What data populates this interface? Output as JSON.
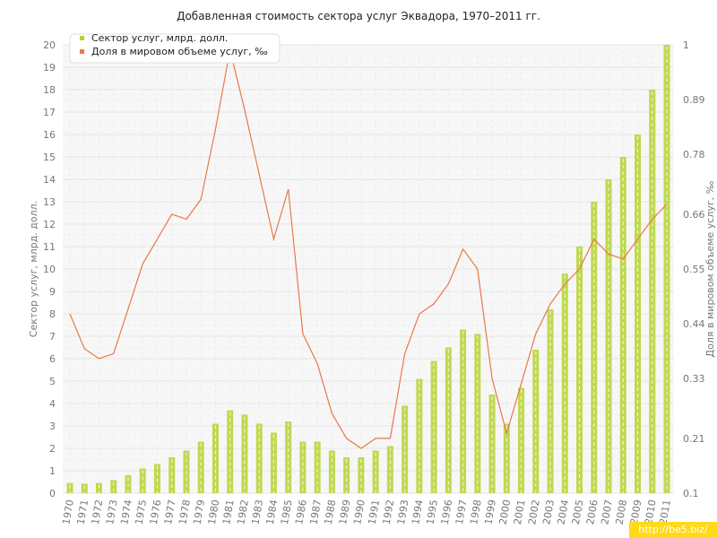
{
  "chart_data": {
    "type": "bar+line",
    "title": "Добавленная стоимость сектора услуг Эквадора, 1970–2011 гг.",
    "ylabel_left": "Сектор услуг, млрд. долл.",
    "ylabel_right": "Доля в мировом объеме услуг, ‰",
    "ylim_left": [
      0,
      20
    ],
    "ylim_right": [
      0.1,
      1
    ],
    "left_ticks": [
      "0",
      "1",
      "2",
      "3",
      "4",
      "5",
      "6",
      "7",
      "8",
      "9",
      "10",
      "11",
      "12",
      "13",
      "14",
      "15",
      "16",
      "17",
      "18",
      "19",
      "20"
    ],
    "right_ticks": [
      "0.1",
      "0.21",
      "0.33",
      "0.44",
      "0.55",
      "0.66",
      "0.78",
      "0.89",
      "1"
    ],
    "legend_position": "top-left",
    "grid": true,
    "categories": [
      "1970",
      "1971",
      "1972",
      "1973",
      "1974",
      "1975",
      "1976",
      "1977",
      "1978",
      "1979",
      "1980",
      "1981",
      "1982",
      "1983",
      "1984",
      "1985",
      "1986",
      "1987",
      "1988",
      "1989",
      "1990",
      "1991",
      "1992",
      "1993",
      "1994",
      "1995",
      "1996",
      "1997",
      "1998",
      "1999",
      "2000",
      "2001",
      "2002",
      "2003",
      "2004",
      "2005",
      "2006",
      "2007",
      "2008",
      "2009",
      "2010",
      "2011"
    ],
    "series": [
      {
        "name": "Сектор услуг, млрд. долл.",
        "type": "bar",
        "axis": "left",
        "color": "#b5d334",
        "values": [
          0.45,
          0.42,
          0.45,
          0.58,
          0.8,
          1.1,
          1.3,
          1.6,
          1.9,
          2.3,
          3.1,
          3.7,
          3.5,
          3.1,
          2.7,
          3.2,
          2.3,
          2.3,
          1.9,
          1.6,
          1.6,
          1.9,
          2.1,
          3.9,
          5.1,
          5.9,
          6.5,
          7.3,
          7.1,
          4.4,
          3.1,
          4.7,
          6.4,
          8.2,
          9.8,
          11.0,
          13.0,
          14.0,
          15.0,
          16.0,
          18.0,
          20.0
        ]
      },
      {
        "name": "Доля в мировом объеме услуг, ‰",
        "type": "line",
        "axis": "right",
        "color": "#e8794a",
        "values": [
          0.46,
          0.39,
          0.37,
          0.38,
          0.47,
          0.56,
          0.61,
          0.66,
          0.65,
          0.69,
          0.83,
          0.99,
          0.87,
          0.74,
          0.61,
          0.71,
          0.42,
          0.36,
          0.26,
          0.21,
          0.19,
          0.21,
          0.21,
          0.38,
          0.46,
          0.48,
          0.52,
          0.59,
          0.55,
          0.33,
          0.22,
          0.32,
          0.42,
          0.48,
          0.52,
          0.55,
          0.61,
          0.58,
          0.57,
          0.61,
          0.65,
          0.68
        ]
      }
    ]
  },
  "watermark": "http://be5.biz/"
}
